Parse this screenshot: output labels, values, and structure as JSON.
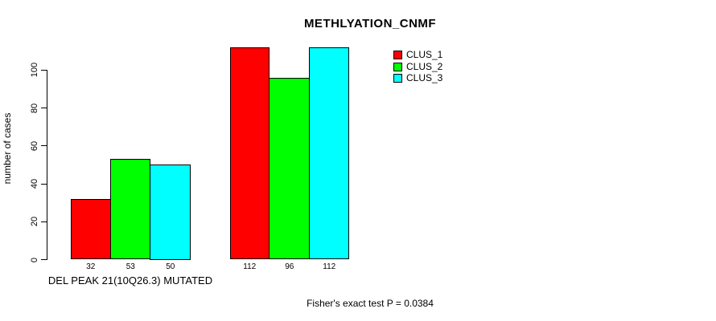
{
  "figure": {
    "title": "METHLYATION_CNMF",
    "footer": "Fisher's exact test P = 0.0384"
  },
  "chart_data": {
    "type": "bar",
    "title": "METHLYATION_CNMF",
    "xlabel": "DEL PEAK 21(10Q26.3) MUTATED",
    "ylabel": "number of cases",
    "categories": [
      "DEL PEAK 21(10Q26.3) MUTATED",
      ""
    ],
    "series": [
      {
        "name": "CLUS_1",
        "color": "#ff0000",
        "values": [
          32,
          112
        ]
      },
      {
        "name": "CLUS_2",
        "color": "#00ff00",
        "values": [
          53,
          96
        ]
      },
      {
        "name": "CLUS_3",
        "color": "#00ffff",
        "values": [
          50,
          112
        ]
      }
    ],
    "bar_value_labels": [
      [
        32,
        53,
        50
      ],
      [
        112,
        96,
        112
      ]
    ],
    "yticks": [
      0,
      20,
      40,
      60,
      80,
      100
    ],
    "ylim": [
      0,
      112
    ],
    "grid": false,
    "legend_position": "top-right",
    "annotation": "Fisher's exact test P = 0.0384"
  }
}
